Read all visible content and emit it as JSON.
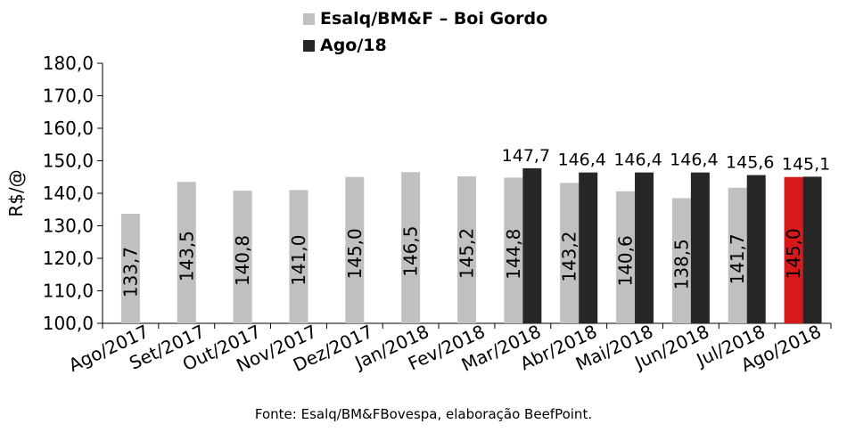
{
  "chart_data": {
    "type": "bar",
    "title": "",
    "xlabel": "",
    "ylabel": "R$/@",
    "ylim": [
      100,
      180
    ],
    "yticks": [
      "100,0",
      "110,0",
      "120,0",
      "130,0",
      "140,0",
      "150,0",
      "160,0",
      "170,0",
      "180,0"
    ],
    "ytick_values": [
      100,
      110,
      120,
      130,
      140,
      150,
      160,
      170,
      180
    ],
    "categories": [
      "Ago/2017",
      "Set/2017",
      "Out/2017",
      "Nov/2017",
      "Dez/2017",
      "Jan/2018",
      "Fev/2018",
      "Mar/2018",
      "Abr/2018",
      "Mai/2018",
      "Jun/2018",
      "Jul/2018",
      "Ago/2018"
    ],
    "series": [
      {
        "name": "Esalq/BM&F – Boi Gordo",
        "color": "#c0c0c0",
        "highlight_color": "#d7191c",
        "highlight_index": 12,
        "values": [
          133.7,
          143.5,
          140.8,
          141.0,
          145.0,
          146.5,
          145.2,
          144.8,
          143.2,
          140.6,
          138.5,
          141.7,
          145.0
        ],
        "labels": [
          "133,7",
          "143,5",
          "140,8",
          "141,0",
          "145,0",
          "146,5",
          "145,2",
          "144,8",
          "143,2",
          "140,6",
          "138,5",
          "141,7",
          "145,0"
        ]
      },
      {
        "name": "Ago/18",
        "color": "#262626",
        "values": [
          null,
          null,
          null,
          null,
          null,
          null,
          null,
          147.7,
          146.4,
          146.4,
          146.4,
          145.6,
          145.1
        ],
        "labels": [
          "",
          "",
          "",
          "",
          "",
          "",
          "",
          "147,7",
          "146,4",
          "146,4",
          "146,4",
          "145,6",
          "145,1"
        ]
      }
    ],
    "legend_position": "top",
    "grid": false
  },
  "source": "Fonte: Esalq/BM&FBovespa, elaboração BeefPoint."
}
